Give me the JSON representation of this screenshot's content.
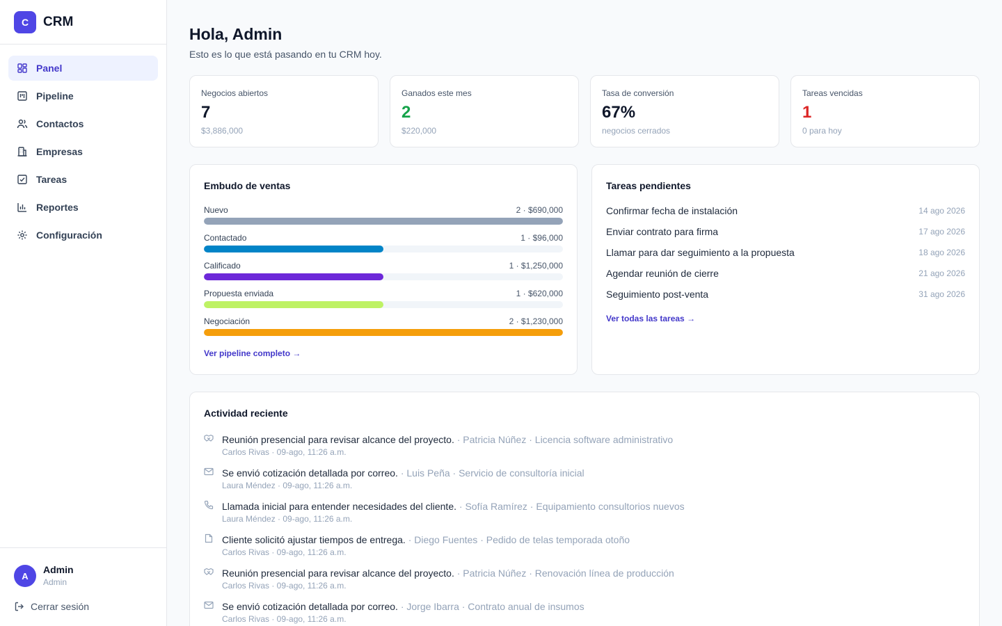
{
  "brand": {
    "logo_letter": "C",
    "name": "CRM"
  },
  "nav": [
    {
      "label": "Panel",
      "icon": "dashboard-icon",
      "active": true
    },
    {
      "label": "Pipeline",
      "icon": "kanban-icon",
      "active": false
    },
    {
      "label": "Contactos",
      "icon": "users-icon",
      "active": false
    },
    {
      "label": "Empresas",
      "icon": "building-icon",
      "active": false
    },
    {
      "label": "Tareas",
      "icon": "checkbox-icon",
      "active": false
    },
    {
      "label": "Reportes",
      "icon": "bar-chart-icon",
      "active": false
    },
    {
      "label": "Configuración",
      "icon": "gear-icon",
      "active": false
    }
  ],
  "user": {
    "initial": "A",
    "name": "Admin",
    "role": "Admin",
    "logout_label": "Cerrar sesión"
  },
  "header": {
    "greeting": "Hola, Admin",
    "subtitle": "Esto es lo que está pasando en tu CRM hoy."
  },
  "stats": [
    {
      "label": "Negocios abiertos",
      "value": "7",
      "sub": "$3,886,000",
      "color": "#0f172a"
    },
    {
      "label": "Ganados este mes",
      "value": "2",
      "sub": "$220,000",
      "color": "#16a34a"
    },
    {
      "label": "Tasa de conversión",
      "value": "67%",
      "sub": "negocios cerrados",
      "color": "#0f172a"
    },
    {
      "label": "Tareas vencidas",
      "value": "1",
      "sub": "0 para hoy",
      "color": "#dc2626"
    }
  ],
  "funnel": {
    "title": "Embudo de ventas",
    "stages": [
      {
        "name": "Nuevo",
        "summary": "2 · $690,000",
        "fraction": 1.0,
        "color": "#94a3b8"
      },
      {
        "name": "Contactado",
        "summary": "1 · $96,000",
        "fraction": 0.5,
        "color": "#0284c7"
      },
      {
        "name": "Calificado",
        "summary": "1 · $1,250,000",
        "fraction": 0.5,
        "color": "#6d28d9"
      },
      {
        "name": "Propuesta enviada",
        "summary": "1 · $620,000",
        "fraction": 0.5,
        "color": "#bef264"
      },
      {
        "name": "Negociación",
        "summary": "2 · $1,230,000",
        "fraction": 1.0,
        "color": "#f59e0b"
      }
    ],
    "link": "Ver pipeline completo →"
  },
  "tasks": {
    "title": "Tareas pendientes",
    "items": [
      {
        "text": "Confirmar fecha de instalación",
        "date": "14 ago 2026"
      },
      {
        "text": "Enviar contrato para firma",
        "date": "17 ago 2026"
      },
      {
        "text": "Llamar para dar seguimiento a la propuesta",
        "date": "18 ago 2026"
      },
      {
        "text": "Agendar reunión de cierre",
        "date": "21 ago 2026"
      },
      {
        "text": "Seguimiento post-venta",
        "date": "31 ago 2026"
      }
    ],
    "link": "Ver todas las tareas →"
  },
  "activity": {
    "title": "Actividad reciente",
    "items": [
      {
        "icon": "handshake-icon",
        "text": "Reunión presencial para revisar alcance del proyecto.",
        "meta": " · Patricia Núñez · Licencia software administrativo",
        "sub": "Carlos Rivas · 09-ago, 11:26 a.m."
      },
      {
        "icon": "mail-icon",
        "text": "Se envió cotización detallada por correo.",
        "meta": " · Luis Peña · Servicio de consultoría inicial",
        "sub": "Laura Méndez · 09-ago, 11:26 a.m."
      },
      {
        "icon": "phone-icon",
        "text": "Llamada inicial para entender necesidades del cliente.",
        "meta": " · Sofía Ramírez · Equipamiento consultorios nuevos",
        "sub": "Laura Méndez · 09-ago, 11:26 a.m."
      },
      {
        "icon": "note-icon",
        "text": "Cliente solicitó ajustar tiempos de entrega.",
        "meta": " · Diego Fuentes · Pedido de telas temporada otoño",
        "sub": "Carlos Rivas · 09-ago, 11:26 a.m."
      },
      {
        "icon": "handshake-icon",
        "text": "Reunión presencial para revisar alcance del proyecto.",
        "meta": " · Patricia Núñez · Renovación línea de producción",
        "sub": "Carlos Rivas · 09-ago, 11:26 a.m."
      },
      {
        "icon": "mail-icon",
        "text": "Se envió cotización detallada por correo.",
        "meta": " · Jorge Ibarra · Contrato anual de insumos",
        "sub": "Carlos Rivas · 09-ago, 11:26 a.m."
      }
    ]
  }
}
